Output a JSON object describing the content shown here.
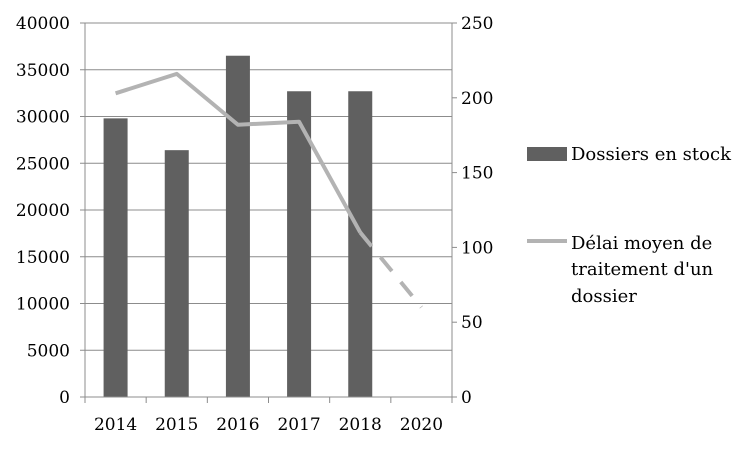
{
  "chart_data": {
    "type": "bar",
    "categories": [
      "2014",
      "2015",
      "2016",
      "2017",
      "2018",
      "2020"
    ],
    "series": [
      {
        "name": "Dossiers en stock",
        "type": "bar",
        "axis": "left",
        "values": [
          29800,
          26400,
          36500,
          32700,
          32700,
          null
        ],
        "color": "#606060"
      },
      {
        "name": "Délai moyen de traitement d'un dossier",
        "name_lines": [
          "Délai moyen de",
          "traitement d'un",
          "dossier"
        ],
        "type": "line",
        "axis": "right",
        "values": [
          203,
          216,
          182,
          184,
          110,
          60
        ],
        "dashed_segments_from_index": 4,
        "color": "#b3b3b3"
      }
    ],
    "y_left": {
      "min": 0,
      "max": 40000,
      "ticks": [
        "0",
        "5000",
        "10000",
        "15000",
        "20000",
        "25000",
        "30000",
        "35000",
        "40000"
      ]
    },
    "y_right": {
      "min": 0,
      "max": 250,
      "ticks": [
        "0",
        "50",
        "100",
        "150",
        "200",
        "250"
      ]
    },
    "grid": true,
    "legend": "right",
    "title": "",
    "xlabel": "",
    "ylabel": ""
  }
}
